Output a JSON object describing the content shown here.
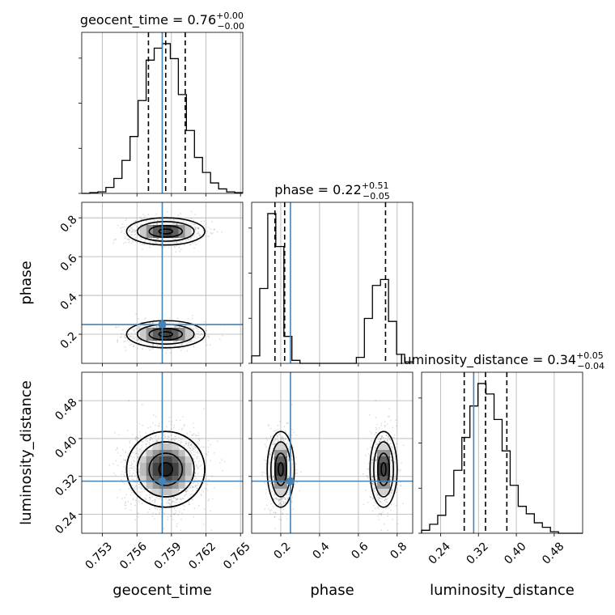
{
  "chart_data": {
    "type": "corner",
    "parameters": [
      "geocent_time",
      "phase",
      "luminosity_distance"
    ],
    "titles": [
      {
        "label": "geocent_time",
        "value": "0.76",
        "plus": "+0.00",
        "minus": "−0.00"
      },
      {
        "label": "phase",
        "value": "0.22",
        "plus": "+0.51",
        "minus": "−0.05"
      },
      {
        "label": "luminosity_distance",
        "value": "0.34",
        "plus": "+0.05",
        "minus": "−0.04"
      }
    ],
    "title_equals": " = ",
    "axis_labels": {
      "x": [
        "geocent_time",
        "phase",
        "luminosity_distance"
      ],
      "y": [
        "phase",
        "luminosity_distance"
      ]
    },
    "ranges": {
      "geocent_time": [
        0.7512,
        0.7652
      ],
      "phase": [
        0.05,
        0.88
      ],
      "luminosity_distance": [
        0.2,
        0.54
      ]
    },
    "ticks": {
      "geocent_time": {
        "values": [
          0.753,
          0.756,
          0.759,
          0.762,
          0.765
        ],
        "labels": [
          "0.753",
          "0.756",
          "0.759",
          "0.762",
          "0.765"
        ]
      },
      "phase": {
        "values": [
          0.2,
          0.4,
          0.6,
          0.8
        ],
        "labels": [
          "0.2",
          "0.4",
          "0.6",
          "0.8"
        ]
      },
      "luminosity_distance": {
        "values": [
          0.24,
          0.32,
          0.4,
          0.48
        ],
        "labels": [
          "0.24",
          "0.32",
          "0.40",
          "0.48"
        ]
      }
    },
    "truths": {
      "geocent_time": 0.7582,
      "phase": 0.25,
      "luminosity_distance": 0.31
    },
    "quantiles": {
      "geocent_time": [
        0.757,
        0.7585,
        0.7602
      ],
      "phase": [
        0.17,
        0.22,
        0.74
      ],
      "luminosity_distance": [
        0.29,
        0.335,
        0.38
      ]
    },
    "histograms": {
      "geocent_time": {
        "edges": [
          0.7512,
          0.7519,
          0.7526,
          0.7533,
          0.754,
          0.7547,
          0.7554,
          0.7561,
          0.7568,
          0.7575,
          0.7582,
          0.7589,
          0.7596,
          0.7603,
          0.761,
          0.7617,
          0.7624,
          0.7631,
          0.7638,
          0.7645,
          0.7652
        ],
        "counts": [
          0,
          0.005,
          0.01,
          0.04,
          0.1,
          0.22,
          0.38,
          0.62,
          0.89,
          0.97,
          1.0,
          0.9,
          0.66,
          0.42,
          0.24,
          0.14,
          0.07,
          0.03,
          0.01,
          0.005
        ]
      },
      "phase": {
        "edges": [
          0.05,
          0.0915,
          0.133,
          0.1745,
          0.216,
          0.2575,
          0.299,
          0.3405,
          0.382,
          0.4235,
          0.465,
          0.5065,
          0.548,
          0.5895,
          0.631,
          0.6725,
          0.714,
          0.7555,
          0.797,
          0.8385,
          0.88
        ],
        "counts": [
          0.05,
          0.5,
          1.0,
          0.78,
          0.18,
          0.02,
          0,
          0,
          0,
          0,
          0,
          0,
          0,
          0.04,
          0.3,
          0.52,
          0.56,
          0.28,
          0.06,
          0.01
        ]
      },
      "luminosity_distance": {
        "edges": [
          0.2,
          0.217,
          0.234,
          0.251,
          0.268,
          0.285,
          0.302,
          0.319,
          0.336,
          0.353,
          0.37,
          0.387,
          0.404,
          0.421,
          0.438,
          0.455,
          0.472,
          0.489,
          0.506,
          0.523,
          0.54
        ],
        "counts": [
          0.02,
          0.06,
          0.12,
          0.25,
          0.42,
          0.64,
          0.85,
          1.0,
          0.93,
          0.76,
          0.55,
          0.32,
          0.18,
          0.13,
          0.07,
          0.04,
          0.01,
          0,
          0,
          0
        ]
      }
    },
    "clusters": [
      {
        "x": 0.7585,
        "y_phase": 0.2,
        "y_ld": 0.335,
        "sx": 0.0017,
        "s_phase": 0.035,
        "s_ld": 0.04,
        "weight": 0.5
      },
      {
        "x": 0.7585,
        "y_phase": 0.73,
        "y_ld": 0.335,
        "sx": 0.0017,
        "s_phase": 0.035,
        "s_ld": 0.04,
        "weight": 0.5
      }
    ],
    "grid": true,
    "colors": {
      "truth": "#4682b4",
      "hist": "#000000",
      "contour": "#000000",
      "points": "#000000",
      "grid": "#b0b0b0"
    }
  }
}
